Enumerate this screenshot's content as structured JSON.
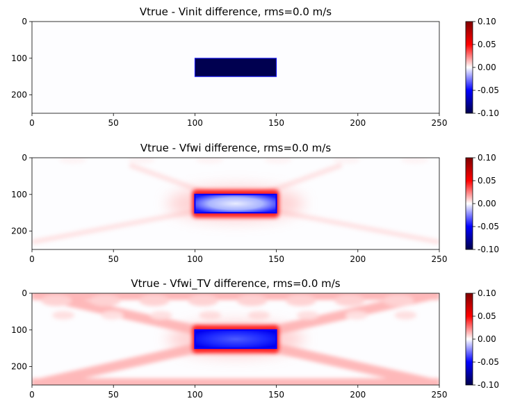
{
  "chart_data": [
    {
      "type": "heatmap",
      "title": "Vtrue - Vinit difference, rms=0.0 m/s",
      "xlabel": "",
      "ylabel": "",
      "xlim": [
        0,
        250
      ],
      "ylim": [
        250,
        0
      ],
      "xticks": [
        0,
        50,
        100,
        150,
        200,
        250
      ],
      "yticks": [
        0,
        100,
        200
      ],
      "colorbar": {
        "min": -0.1,
        "max": 0.1,
        "ticks": [
          "0.10",
          "0.05",
          "0.00",
          "-0.05",
          "-0.10"
        ],
        "cmap": "seismic"
      },
      "features": [
        {
          "shape": "rect",
          "x": [
            100,
            150
          ],
          "y": [
            100,
            150
          ],
          "value": -0.1
        }
      ]
    },
    {
      "type": "heatmap",
      "title": "Vtrue - Vfwi difference, rms=0.0 m/s",
      "xlabel": "",
      "ylabel": "",
      "xlim": [
        0,
        250
      ],
      "ylim": [
        250,
        0
      ],
      "xticks": [
        0,
        50,
        100,
        150,
        200,
        250
      ],
      "yticks": [
        0,
        100,
        200
      ],
      "colorbar": {
        "min": -0.1,
        "max": 0.1,
        "ticks": [
          "0.10",
          "0.05",
          "0.00",
          "-0.05",
          "-0.10"
        ],
        "cmap": "seismic"
      },
      "features": [
        {
          "shape": "rect",
          "x": [
            100,
            150
          ],
          "y": [
            100,
            150
          ],
          "value": -0.05
        },
        {
          "shape": "halo",
          "x": [
            100,
            150
          ],
          "y": [
            100,
            150
          ],
          "value": 0.1
        }
      ]
    },
    {
      "type": "heatmap",
      "title": "Vtrue - Vfwi_TV difference, rms=0.0 m/s",
      "xlabel": "",
      "ylabel": "",
      "xlim": [
        0,
        250
      ],
      "ylim": [
        250,
        0
      ],
      "xticks": [
        0,
        50,
        100,
        150,
        200,
        250
      ],
      "yticks": [
        0,
        100,
        200
      ],
      "colorbar": {
        "min": -0.1,
        "max": 0.1,
        "ticks": [
          "0.10",
          "0.05",
          "0.00",
          "-0.05",
          "-0.10"
        ],
        "cmap": "seismic"
      },
      "features": [
        {
          "shape": "rect",
          "x": [
            100,
            150
          ],
          "y": [
            100,
            150
          ],
          "value": -0.09
        },
        {
          "shape": "halo",
          "x": [
            100,
            150
          ],
          "y": [
            100,
            150
          ],
          "value": 0.1
        },
        {
          "shape": "streaks",
          "value": 0.03
        }
      ]
    }
  ]
}
